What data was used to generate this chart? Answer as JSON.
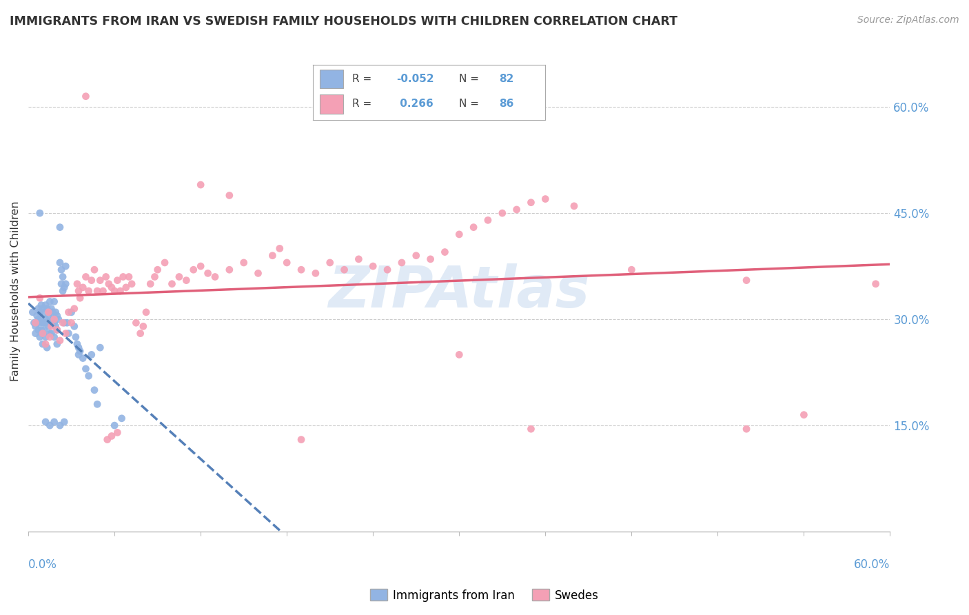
{
  "title": "IMMIGRANTS FROM IRAN VS SWEDISH FAMILY HOUSEHOLDS WITH CHILDREN CORRELATION CHART",
  "source": "Source: ZipAtlas.com",
  "ylabel": "Family Households with Children",
  "right_yticks": [
    "15.0%",
    "30.0%",
    "45.0%",
    "60.0%"
  ],
  "right_ytick_vals": [
    0.15,
    0.3,
    0.45,
    0.6
  ],
  "xmin": 0.0,
  "xmax": 0.6,
  "ymin": 0.0,
  "ymax": 0.68,
  "blue_color": "#92b4e3",
  "pink_color": "#f4a0b5",
  "blue_line_color": "#5580b8",
  "pink_line_color": "#e0607a",
  "grid_color": "#cccccc",
  "text_color": "#333333",
  "axis_label_color": "#5b9bd5",
  "watermark_color": "#ccddf0",
  "blue_scatter": [
    [
      0.003,
      0.31
    ],
    [
      0.004,
      0.295
    ],
    [
      0.005,
      0.29
    ],
    [
      0.005,
      0.28
    ],
    [
      0.006,
      0.305
    ],
    [
      0.006,
      0.295
    ],
    [
      0.007,
      0.3
    ],
    [
      0.007,
      0.315
    ],
    [
      0.007,
      0.285
    ],
    [
      0.008,
      0.31
    ],
    [
      0.008,
      0.295
    ],
    [
      0.008,
      0.275
    ],
    [
      0.009,
      0.32
    ],
    [
      0.009,
      0.3
    ],
    [
      0.009,
      0.285
    ],
    [
      0.01,
      0.315
    ],
    [
      0.01,
      0.295
    ],
    [
      0.01,
      0.28
    ],
    [
      0.01,
      0.265
    ],
    [
      0.011,
      0.31
    ],
    [
      0.011,
      0.295
    ],
    [
      0.011,
      0.285
    ],
    [
      0.012,
      0.32
    ],
    [
      0.012,
      0.3
    ],
    [
      0.012,
      0.275
    ],
    [
      0.013,
      0.315
    ],
    [
      0.013,
      0.295
    ],
    [
      0.013,
      0.26
    ],
    [
      0.014,
      0.305
    ],
    [
      0.014,
      0.29
    ],
    [
      0.015,
      0.325
    ],
    [
      0.015,
      0.31
    ],
    [
      0.015,
      0.295
    ],
    [
      0.015,
      0.28
    ],
    [
      0.016,
      0.315
    ],
    [
      0.016,
      0.295
    ],
    [
      0.016,
      0.28
    ],
    [
      0.017,
      0.31
    ],
    [
      0.017,
      0.3
    ],
    [
      0.018,
      0.325
    ],
    [
      0.018,
      0.295
    ],
    [
      0.018,
      0.275
    ],
    [
      0.019,
      0.31
    ],
    [
      0.019,
      0.29
    ],
    [
      0.02,
      0.305
    ],
    [
      0.02,
      0.285
    ],
    [
      0.02,
      0.265
    ],
    [
      0.021,
      0.3
    ],
    [
      0.022,
      0.43
    ],
    [
      0.022,
      0.38
    ],
    [
      0.023,
      0.37
    ],
    [
      0.023,
      0.35
    ],
    [
      0.024,
      0.36
    ],
    [
      0.024,
      0.34
    ],
    [
      0.025,
      0.345
    ],
    [
      0.025,
      0.295
    ],
    [
      0.026,
      0.375
    ],
    [
      0.026,
      0.35
    ],
    [
      0.027,
      0.295
    ],
    [
      0.028,
      0.28
    ],
    [
      0.03,
      0.31
    ],
    [
      0.032,
      0.29
    ],
    [
      0.033,
      0.275
    ],
    [
      0.034,
      0.265
    ],
    [
      0.035,
      0.26
    ],
    [
      0.035,
      0.25
    ],
    [
      0.036,
      0.255
    ],
    [
      0.038,
      0.245
    ],
    [
      0.04,
      0.23
    ],
    [
      0.042,
      0.22
    ],
    [
      0.044,
      0.25
    ],
    [
      0.046,
      0.2
    ],
    [
      0.048,
      0.18
    ],
    [
      0.05,
      0.26
    ],
    [
      0.06,
      0.15
    ],
    [
      0.065,
      0.16
    ],
    [
      0.008,
      0.45
    ],
    [
      0.012,
      0.155
    ],
    [
      0.015,
      0.15
    ],
    [
      0.018,
      0.155
    ],
    [
      0.022,
      0.15
    ],
    [
      0.025,
      0.155
    ]
  ],
  "pink_scatter": [
    [
      0.005,
      0.295
    ],
    [
      0.008,
      0.33
    ],
    [
      0.01,
      0.28
    ],
    [
      0.012,
      0.265
    ],
    [
      0.014,
      0.31
    ],
    [
      0.015,
      0.275
    ],
    [
      0.016,
      0.29
    ],
    [
      0.018,
      0.3
    ],
    [
      0.02,
      0.285
    ],
    [
      0.022,
      0.27
    ],
    [
      0.024,
      0.295
    ],
    [
      0.026,
      0.28
    ],
    [
      0.028,
      0.31
    ],
    [
      0.03,
      0.295
    ],
    [
      0.032,
      0.315
    ],
    [
      0.034,
      0.35
    ],
    [
      0.035,
      0.34
    ],
    [
      0.036,
      0.33
    ],
    [
      0.038,
      0.345
    ],
    [
      0.04,
      0.36
    ],
    [
      0.042,
      0.34
    ],
    [
      0.044,
      0.355
    ],
    [
      0.046,
      0.37
    ],
    [
      0.048,
      0.34
    ],
    [
      0.05,
      0.355
    ],
    [
      0.052,
      0.34
    ],
    [
      0.054,
      0.36
    ],
    [
      0.056,
      0.35
    ],
    [
      0.058,
      0.345
    ],
    [
      0.06,
      0.34
    ],
    [
      0.062,
      0.355
    ],
    [
      0.064,
      0.34
    ],
    [
      0.066,
      0.36
    ],
    [
      0.068,
      0.345
    ],
    [
      0.07,
      0.36
    ],
    [
      0.072,
      0.35
    ],
    [
      0.075,
      0.295
    ],
    [
      0.078,
      0.28
    ],
    [
      0.08,
      0.29
    ],
    [
      0.082,
      0.31
    ],
    [
      0.085,
      0.35
    ],
    [
      0.088,
      0.36
    ],
    [
      0.09,
      0.37
    ],
    [
      0.095,
      0.38
    ],
    [
      0.1,
      0.35
    ],
    [
      0.105,
      0.36
    ],
    [
      0.11,
      0.355
    ],
    [
      0.115,
      0.37
    ],
    [
      0.12,
      0.375
    ],
    [
      0.125,
      0.365
    ],
    [
      0.13,
      0.36
    ],
    [
      0.14,
      0.37
    ],
    [
      0.15,
      0.38
    ],
    [
      0.16,
      0.365
    ],
    [
      0.17,
      0.39
    ],
    [
      0.175,
      0.4
    ],
    [
      0.18,
      0.38
    ],
    [
      0.19,
      0.37
    ],
    [
      0.2,
      0.365
    ],
    [
      0.21,
      0.38
    ],
    [
      0.22,
      0.37
    ],
    [
      0.23,
      0.385
    ],
    [
      0.24,
      0.375
    ],
    [
      0.25,
      0.37
    ],
    [
      0.26,
      0.38
    ],
    [
      0.27,
      0.39
    ],
    [
      0.28,
      0.385
    ],
    [
      0.29,
      0.395
    ],
    [
      0.3,
      0.42
    ],
    [
      0.31,
      0.43
    ],
    [
      0.32,
      0.44
    ],
    [
      0.33,
      0.45
    ],
    [
      0.34,
      0.455
    ],
    [
      0.35,
      0.465
    ],
    [
      0.36,
      0.47
    ],
    [
      0.38,
      0.46
    ],
    [
      0.04,
      0.615
    ],
    [
      0.14,
      0.475
    ],
    [
      0.12,
      0.49
    ],
    [
      0.055,
      0.13
    ],
    [
      0.058,
      0.135
    ],
    [
      0.062,
      0.14
    ],
    [
      0.3,
      0.25
    ],
    [
      0.59,
      0.35
    ],
    [
      0.42,
      0.37
    ],
    [
      0.5,
      0.355
    ],
    [
      0.54,
      0.165
    ],
    [
      0.19,
      0.13
    ],
    [
      0.35,
      0.145
    ],
    [
      0.5,
      0.145
    ]
  ]
}
